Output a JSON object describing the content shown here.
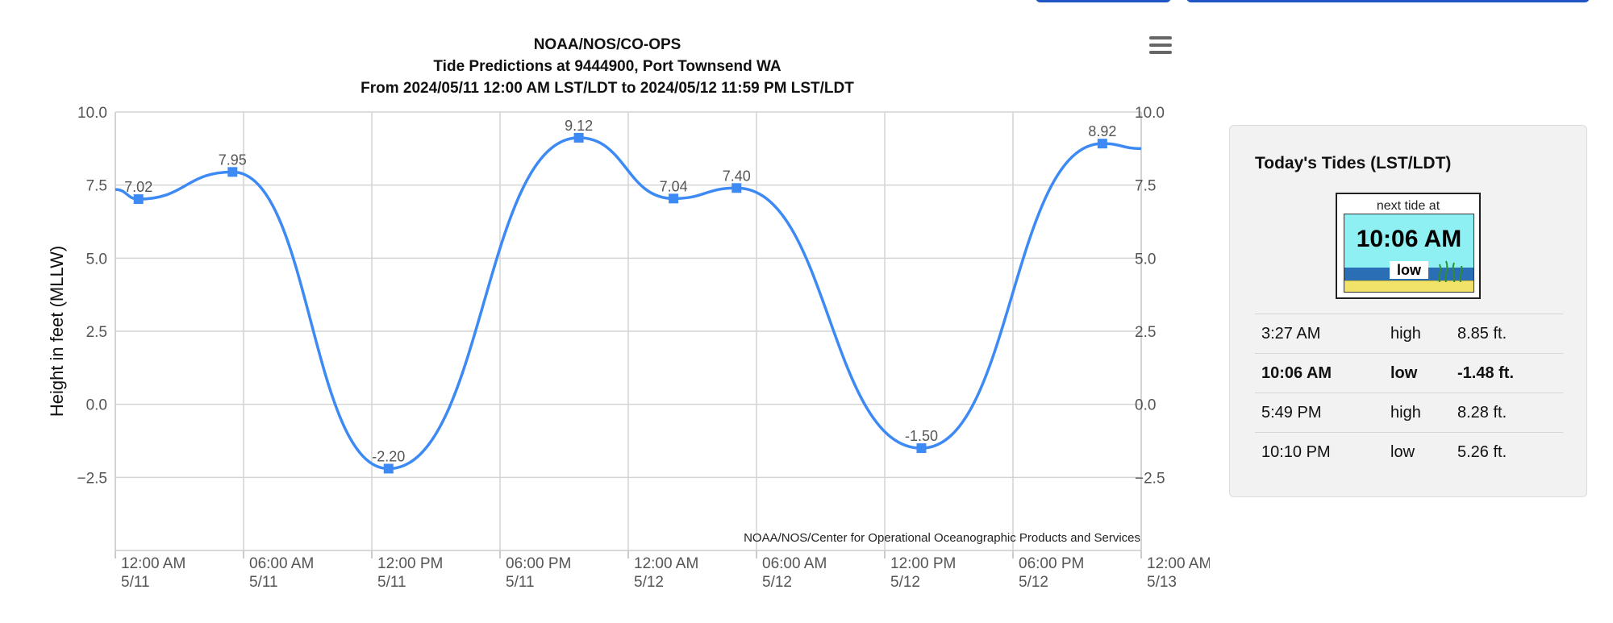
{
  "chart_data": {
    "type": "line",
    "title": "NOAA/NOS/CO-OPS",
    "subtitle": [
      "Tide Predictions at 9444900, Port Townsend WA",
      "From 2024/05/11 12:00 AM LST/LDT to 2024/05/12 11:59 PM LST/LDT"
    ],
    "credit": "NOAA/NOS/Center for Operational Oceanographic Products and Services",
    "ylabel": "Height in feet (MLLW)",
    "xlabel": "",
    "ylim": [
      -5,
      10
    ],
    "yticks": [
      "10.0",
      "7.5",
      "5.0",
      "2.5",
      "0.0",
      "−2.5"
    ],
    "ytick_values": [
      10,
      7.5,
      5,
      2.5,
      0,
      -2.5
    ],
    "xlim": [
      "2024-05-11 00:00",
      "2024-05-13 00:00"
    ],
    "xticks": [
      {
        "time": "12:00 AM",
        "date": "5/11",
        "at": "2024-05-11 00:00"
      },
      {
        "time": "06:00 AM",
        "date": "5/11",
        "at": "2024-05-11 06:00"
      },
      {
        "time": "12:00 PM",
        "date": "5/11",
        "at": "2024-05-11 12:00"
      },
      {
        "time": "06:00 PM",
        "date": "5/11",
        "at": "2024-05-11 18:00"
      },
      {
        "time": "12:00 AM",
        "date": "5/12",
        "at": "2024-05-12 00:00"
      },
      {
        "time": "06:00 AM",
        "date": "5/12",
        "at": "2024-05-12 06:00"
      },
      {
        "time": "12:00 PM",
        "date": "5/12",
        "at": "2024-05-12 12:00"
      },
      {
        "time": "06:00 PM",
        "date": "5/12",
        "at": "2024-05-12 18:00"
      },
      {
        "time": "12:00 AM",
        "date": "5/13",
        "at": "2024-05-13 00:00"
      }
    ],
    "grid": true,
    "series": [
      {
        "color": "#3d8af5",
        "points": [
          {
            "x": "2024-05-11 00:00",
            "y": 7.35
          },
          {
            "x": "2024-05-11 01:05",
            "y": 7.02,
            "label": "7.02"
          },
          {
            "x": "2024-05-11 05:29",
            "y": 7.95,
            "label": "7.95"
          },
          {
            "x": "2024-05-11 12:47",
            "y": -2.2,
            "label": "-2.20"
          },
          {
            "x": "2024-05-11 21:41",
            "y": 9.12,
            "label": "9.12"
          },
          {
            "x": "2024-05-12 02:07",
            "y": 7.04,
            "label": "7.04"
          },
          {
            "x": "2024-05-12 05:04",
            "y": 7.4,
            "label": "7.40"
          },
          {
            "x": "2024-05-12 13:43",
            "y": -1.5,
            "label": "-1.50"
          },
          {
            "x": "2024-05-12 22:11",
            "y": 8.92,
            "label": "8.92"
          },
          {
            "x": "2024-05-13 00:00",
            "y": 8.75
          }
        ]
      }
    ]
  },
  "menu_icon": "hamburger-menu-icon",
  "todays_tides": {
    "title": "Today's Tides (LST/LDT)",
    "widget": {
      "caption": "next tide at",
      "time": "10:06 AM",
      "state": "low",
      "colors": {
        "sky": "#8ff0f4",
        "water": "#2a6fb5",
        "sand": "#f1e36a"
      }
    },
    "rows": [
      {
        "time": "3:27 AM",
        "type": "high",
        "height": "8.85 ft.",
        "current": false
      },
      {
        "time": "10:06 AM",
        "type": "low",
        "height": "-1.48 ft.",
        "current": true
      },
      {
        "time": "5:49 PM",
        "type": "high",
        "height": "8.28 ft.",
        "current": false
      },
      {
        "time": "10:10 PM",
        "type": "low",
        "height": "5.26 ft.",
        "current": false
      }
    ]
  }
}
